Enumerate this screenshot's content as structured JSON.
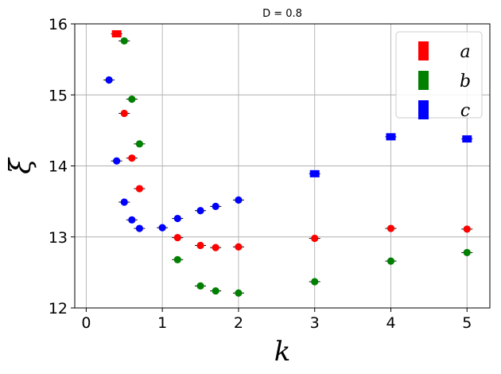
{
  "chart_data": {
    "type": "scatter",
    "title": "D = 0.8",
    "xlabel": "k",
    "ylabel": "ξ",
    "xlim": [
      -0.15,
      5.3
    ],
    "ylim": [
      12,
      16
    ],
    "xticks": [
      "0",
      "1",
      "2",
      "3",
      "4",
      "5"
    ],
    "yticks": [
      "12",
      "13",
      "14",
      "15",
      "16"
    ],
    "grid": true,
    "legend_position": "top-right",
    "series": [
      {
        "name": "a",
        "color": "#ff0000",
        "points": [
          {
            "x": 0.4,
            "y": 15.86,
            "marker": "square"
          },
          {
            "x": 0.5,
            "y": 14.74,
            "marker": "circle"
          },
          {
            "x": 0.6,
            "y": 14.11,
            "marker": "circle"
          },
          {
            "x": 0.7,
            "y": 13.68,
            "marker": "circle"
          },
          {
            "x": 1.2,
            "y": 12.99,
            "marker": "circle"
          },
          {
            "x": 1.5,
            "y": 12.88,
            "marker": "circle"
          },
          {
            "x": 1.7,
            "y": 12.85,
            "marker": "circle"
          },
          {
            "x": 2.0,
            "y": 12.86,
            "marker": "circle"
          },
          {
            "x": 3.0,
            "y": 12.98,
            "marker": "circle"
          },
          {
            "x": 4.0,
            "y": 13.12,
            "marker": "circle"
          },
          {
            "x": 5.0,
            "y": 13.11,
            "marker": "circle"
          }
        ]
      },
      {
        "name": "b",
        "color": "#008000",
        "points": [
          {
            "x": 0.5,
            "y": 15.76,
            "marker": "circle"
          },
          {
            "x": 0.6,
            "y": 14.94,
            "marker": "circle"
          },
          {
            "x": 0.7,
            "y": 14.31,
            "marker": "circle"
          },
          {
            "x": 1.2,
            "y": 12.68,
            "marker": "circle"
          },
          {
            "x": 1.5,
            "y": 12.31,
            "marker": "circle"
          },
          {
            "x": 1.7,
            "y": 12.24,
            "marker": "circle"
          },
          {
            "x": 2.0,
            "y": 12.21,
            "marker": "circle"
          },
          {
            "x": 3.0,
            "y": 12.37,
            "marker": "circle"
          },
          {
            "x": 4.0,
            "y": 12.66,
            "marker": "circle"
          },
          {
            "x": 5.0,
            "y": 12.78,
            "marker": "circle"
          }
        ]
      },
      {
        "name": "c",
        "color": "#0000ff",
        "points": [
          {
            "x": 0.3,
            "y": 15.21,
            "marker": "circle"
          },
          {
            "x": 0.4,
            "y": 14.07,
            "marker": "circle"
          },
          {
            "x": 0.5,
            "y": 13.49,
            "marker": "circle"
          },
          {
            "x": 0.6,
            "y": 13.24,
            "marker": "circle"
          },
          {
            "x": 0.7,
            "y": 13.12,
            "marker": "circle"
          },
          {
            "x": 1.0,
            "y": 13.13,
            "marker": "circle"
          },
          {
            "x": 1.2,
            "y": 13.26,
            "marker": "circle"
          },
          {
            "x": 1.5,
            "y": 13.37,
            "marker": "circle"
          },
          {
            "x": 1.7,
            "y": 13.43,
            "marker": "circle"
          },
          {
            "x": 2.0,
            "y": 13.52,
            "marker": "circle"
          },
          {
            "x": 3.0,
            "y": 13.89,
            "marker": "square"
          },
          {
            "x": 4.0,
            "y": 14.41,
            "marker": "square"
          },
          {
            "x": 5.0,
            "y": 14.38,
            "marker": "square"
          }
        ]
      }
    ]
  }
}
